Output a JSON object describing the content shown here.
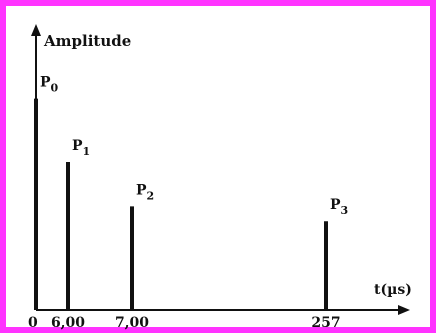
{
  "chart_data": {
    "type": "bar",
    "title": "",
    "ylabel": "Amplitude",
    "xlabel": "t(µs)",
    "x_ticks": [
      "0",
      "6,00",
      "7,00",
      "257"
    ],
    "series": [
      {
        "points": [
          {
            "label": "P0",
            "label_main": "P",
            "label_sub": "0",
            "x_tick": "0",
            "amplitude": 1.0
          },
          {
            "label": "P1",
            "label_main": "P",
            "label_sub": "1",
            "x_tick": "6,00",
            "amplitude": 0.7
          },
          {
            "label": "P2",
            "label_main": "P",
            "label_sub": "2",
            "x_tick": "7,00",
            "amplitude": 0.49
          },
          {
            "label": "P3",
            "label_main": "P",
            "label_sub": "3",
            "x_tick": "257",
            "amplitude": 0.42
          }
        ]
      }
    ],
    "ylim": [
      0,
      1.05
    ],
    "grid": false,
    "x_axis_note": "axis is not drawn to scale; tick labels are placed at fixed positions"
  },
  "colors": {
    "frame": "#ff33ff",
    "ink": "#111111",
    "background": "#ffffff"
  }
}
